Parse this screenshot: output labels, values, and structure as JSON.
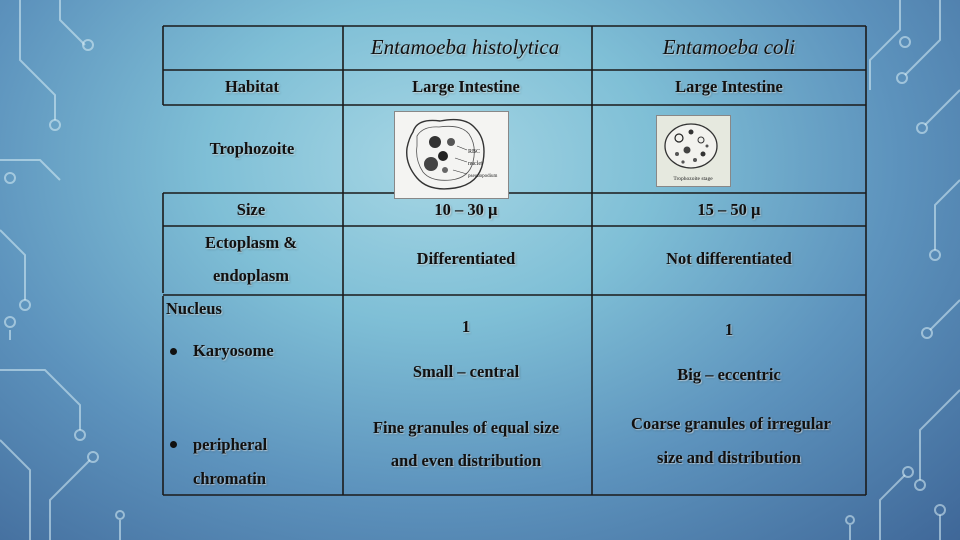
{
  "headers": {
    "col1": "",
    "col2": "Entamoeba histolytica",
    "col3": "Entamoeba coli"
  },
  "rows": {
    "habitat": {
      "label": "Habitat",
      "histolytica": "Large Intestine",
      "coli": "Large Intestine"
    },
    "trophozoite": {
      "label": "Trophozoite"
    },
    "size": {
      "label": "Size",
      "histolytica": "10 – 30 µ",
      "coli": "15 – 50 µ"
    },
    "ecto": {
      "label_line1": "Ectoplasm &",
      "label_line2": "endoplasm",
      "histolytica": "Differentiated",
      "coli": "Not differentiated"
    },
    "nucleus": {
      "label": "Nucleus",
      "histolytica": "1",
      "coli": "1",
      "karyosome": {
        "label": "Karyosome",
        "histolytica": "Small – central",
        "coli": "Big – eccentric"
      },
      "peripheral": {
        "label_line1": "peripheral",
        "label_line2": "chromatin",
        "histolytica_line1": "Fine granules of equal size",
        "histolytica_line2": "and even distribution",
        "coli_line1": "Coarse granules of irregular",
        "coli_line2": "size and distribution"
      }
    }
  },
  "thumbnails": {
    "histolytica": {
      "labels": [
        "RBC",
        "nuclei",
        "pseudopodium"
      ]
    },
    "coli": {
      "caption": "Trophozoite stage"
    }
  }
}
